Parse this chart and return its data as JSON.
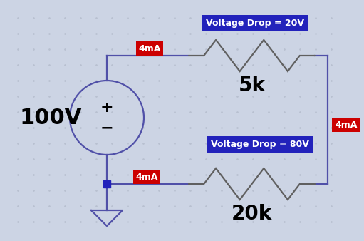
{
  "bg_color": "#ccd4e4",
  "wire_color": "#5050a8",
  "wire_lw": 1.6,
  "resistor_color": "#606060",
  "source_color": "#5050a8",
  "label_100V": "100V",
  "label_5k": "5k",
  "label_20k": "20k",
  "label_vdrop_top": "Voltage Drop = 20V",
  "label_vdrop_bot": "Voltage Drop = 80V",
  "label_4mA_top": "4mA",
  "label_4mA_right": "4mA",
  "label_4mA_bot": "4mA",
  "red_bg": "#cc0000",
  "blue_bg": "#2222bb",
  "text_white": "#ffffff",
  "grid_color": "#b8c0d0",
  "node_color": "#2222bb",
  "plus_sign": "+",
  "minus_sign": "−"
}
